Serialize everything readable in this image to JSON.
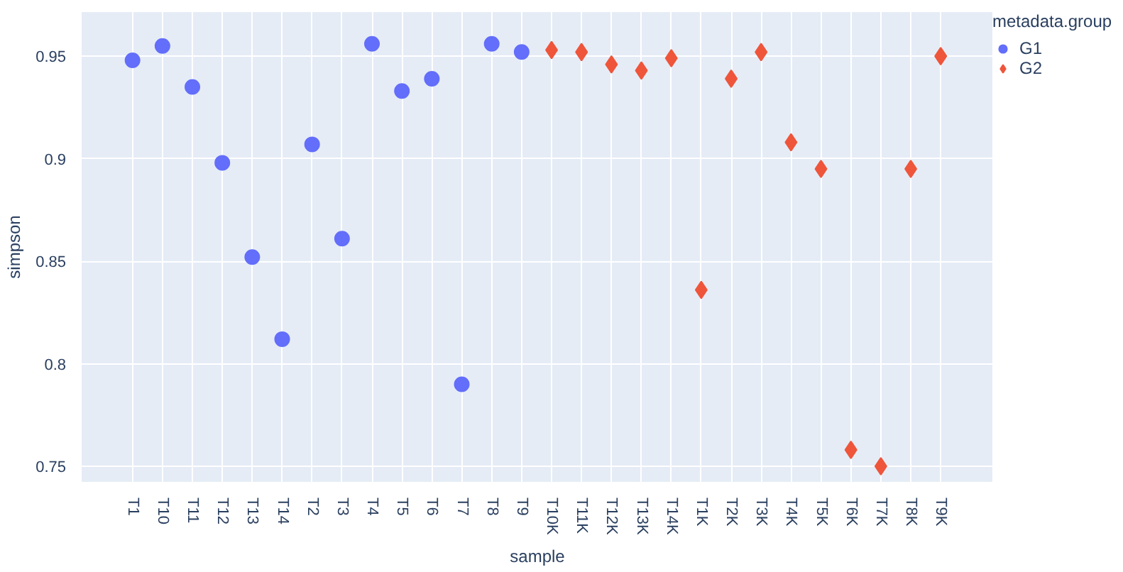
{
  "chart_data": {
    "type": "scatter",
    "xlabel": "sample",
    "ylabel": "simpson",
    "legend_title": "metadata.group",
    "legend": "top right",
    "grid": true,
    "categories": [
      "T1",
      "T10",
      "T11",
      "T12",
      "T13",
      "T14",
      "T2",
      "T3",
      "T4",
      "T5",
      "T6",
      "T7",
      "T8",
      "T9",
      "T10K",
      "T11K",
      "T12K",
      "T13K",
      "T14K",
      "T1K",
      "T2K",
      "T3K",
      "T4K",
      "T5K",
      "T6K",
      "T7K",
      "T8K",
      "T9K"
    ],
    "ylim": [
      0.7424,
      0.9715
    ],
    "yticks": [
      0.75,
      0.8,
      0.85,
      0.9,
      0.95
    ],
    "series": [
      {
        "name": "G1",
        "color": "#636efa",
        "marker": "circle",
        "values": [
          0.948,
          0.955,
          0.935,
          0.898,
          0.852,
          0.812,
          0.907,
          0.861,
          0.956,
          0.933,
          0.939,
          0.79,
          0.956,
          0.952,
          null,
          null,
          null,
          null,
          null,
          null,
          null,
          null,
          null,
          null,
          null,
          null,
          null,
          null
        ]
      },
      {
        "name": "G2",
        "color": "#ef553b",
        "marker": "diamond",
        "values": [
          null,
          null,
          null,
          null,
          null,
          null,
          null,
          null,
          null,
          null,
          null,
          null,
          null,
          null,
          0.953,
          0.952,
          0.946,
          0.943,
          0.949,
          0.836,
          0.939,
          0.952,
          0.908,
          0.895,
          0.758,
          0.75,
          0.895,
          0.95
        ]
      }
    ]
  }
}
